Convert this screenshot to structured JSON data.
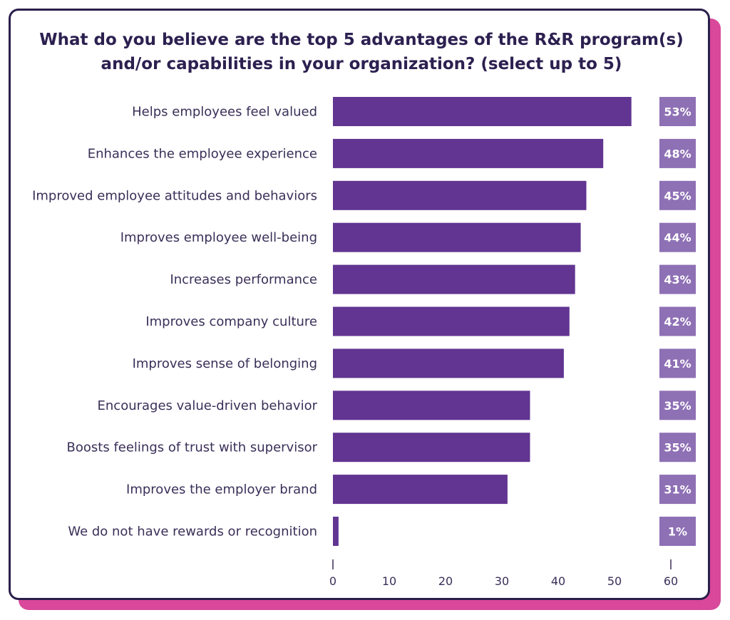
{
  "colors": {
    "bar": "#613591",
    "value_box": "#8e70b5",
    "title": "#2c2050",
    "text": "#3a2f58",
    "border": "#2a1f4a",
    "shadow": "#d9489a",
    "background": "#ffffff"
  },
  "chart_data": {
    "type": "bar",
    "orientation": "horizontal",
    "title": "What do you believe are the top 5 advantages of the R&R program(s) and/or capabilities in your organization? (select up to 5)",
    "title_lines": [
      "What do you believe are the top 5 advantages of the R&R program(s)",
      "and/or capabilities in your organization? (select up to 5)"
    ],
    "categories": [
      "Helps employees feel valued",
      "Enhances the employee experience",
      "Improved employee attitudes and behaviors",
      "Improves employee well-being",
      "Increases performance",
      "Improves company culture",
      "Improves sense of belonging",
      "Encourages value-driven behavior",
      "Boosts feelings of trust with supervisor",
      "Improves the employer brand",
      "We do not have rewards or recognition"
    ],
    "values": [
      53,
      48,
      45,
      44,
      43,
      42,
      41,
      35,
      35,
      31,
      1
    ],
    "value_labels": [
      "53%",
      "48%",
      "45%",
      "44%",
      "43%",
      "42%",
      "41%",
      "35%",
      "35%",
      "31%",
      "1%"
    ],
    "xlim": [
      0,
      60
    ],
    "x_ticks": [
      0,
      10,
      20,
      30,
      40,
      50,
      60
    ],
    "grid": false,
    "xlabel": "",
    "ylabel": ""
  }
}
